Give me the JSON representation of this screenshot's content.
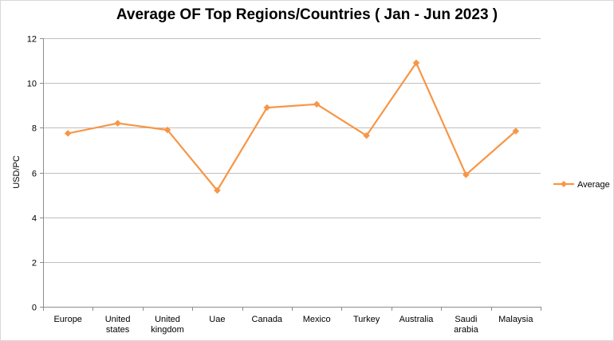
{
  "chart_data": {
    "type": "line",
    "title": "Average OF Top Regions/Countries ( Jan - Jun 2023 )",
    "xlabel": "",
    "ylabel": "USD/PC",
    "categories": [
      "Europe",
      "United states",
      "United kingdom",
      "Uae",
      "Canada",
      "Mexico",
      "Turkey",
      "Australia",
      "Saudi arabia",
      "Malaysia"
    ],
    "series": [
      {
        "name": "Average",
        "values": [
          7.75,
          8.2,
          7.9,
          5.2,
          8.9,
          9.05,
          7.65,
          10.9,
          5.9,
          7.85
        ],
        "color": "#F79646",
        "marker": "diamond"
      }
    ],
    "ylim": [
      0,
      12
    ],
    "yticks": [
      0,
      2,
      4,
      6,
      8,
      10,
      12
    ],
    "grid": true,
    "legend": "right"
  }
}
